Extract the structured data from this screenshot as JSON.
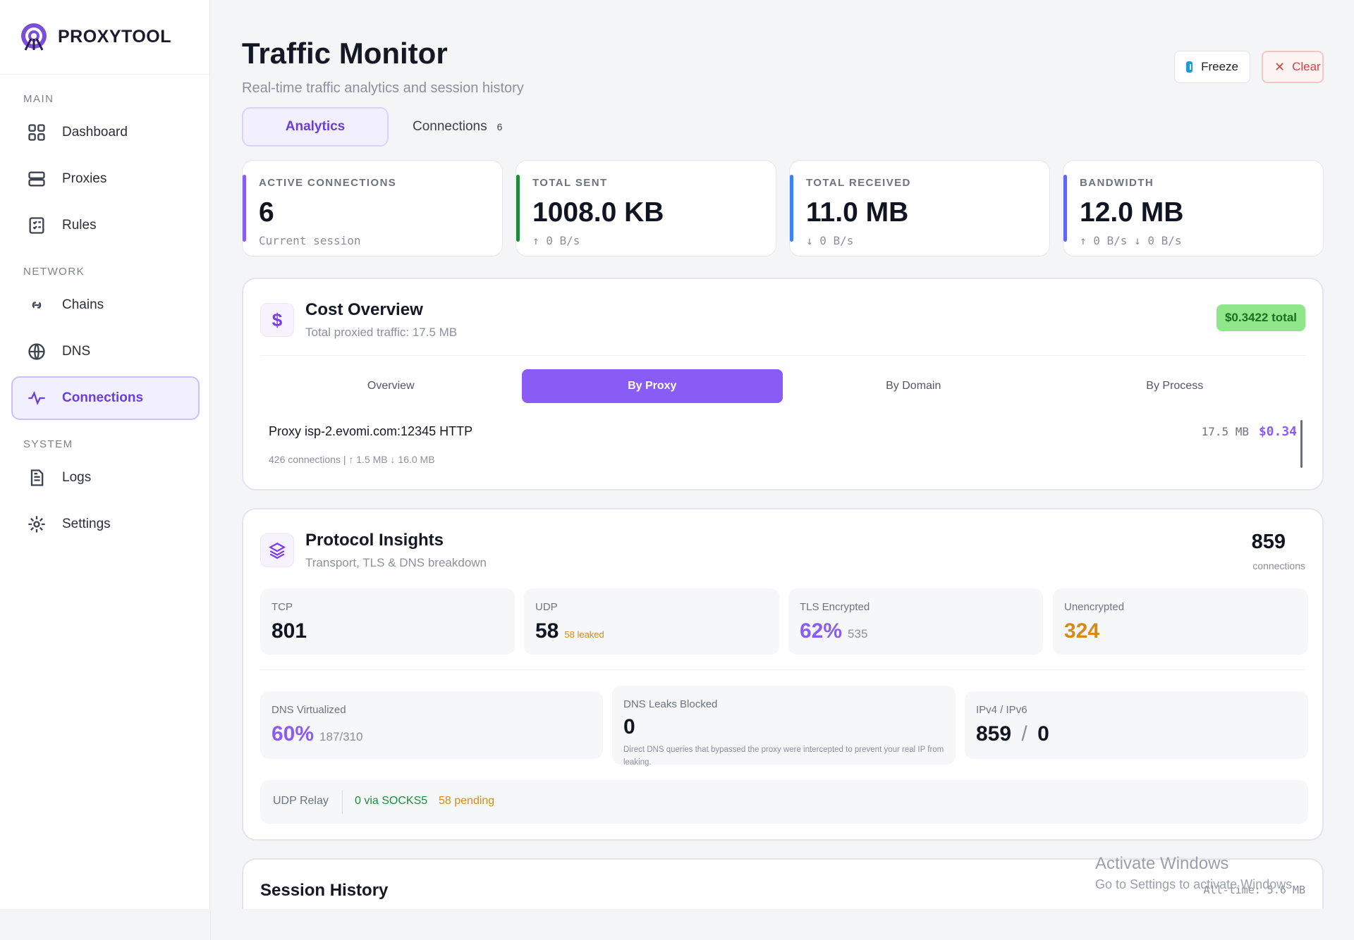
{
  "app": {
    "name": "PROXYTOOL"
  },
  "sidebar": {
    "sections": [
      {
        "title": "MAIN",
        "items": [
          {
            "label": "Dashboard",
            "icon": "grid-icon"
          },
          {
            "label": "Proxies",
            "icon": "server-icon"
          },
          {
            "label": "Rules",
            "icon": "checklist-icon"
          }
        ]
      },
      {
        "title": "NETWORK",
        "items": [
          {
            "label": "Chains",
            "icon": "link-icon"
          },
          {
            "label": "DNS",
            "icon": "globe-icon"
          },
          {
            "label": "Connections",
            "icon": "activity-icon",
            "active": true
          }
        ]
      },
      {
        "title": "SYSTEM",
        "items": [
          {
            "label": "Logs",
            "icon": "document-icon"
          },
          {
            "label": "Settings",
            "icon": "gear-icon"
          }
        ]
      }
    ]
  },
  "header": {
    "title": "Traffic Monitor",
    "subtitle": "Real-time traffic analytics and session history",
    "freeze_label": "Freeze",
    "clear_label": "Clear"
  },
  "tabs": {
    "analytics": "Analytics",
    "connections": "Connections",
    "connections_count": "6"
  },
  "stats": {
    "active": {
      "label": "ACTIVE CONNECTIONS",
      "value": "6",
      "sub": "Current session",
      "color": "#8a5cf6"
    },
    "sent": {
      "label": "TOTAL SENT",
      "value": "1008.0 KB",
      "sub": "↑ 0 B/s",
      "color": "#1f8a3a"
    },
    "received": {
      "label": "TOTAL RECEIVED",
      "value": "11.0 MB",
      "sub": "↓ 0 B/s",
      "color": "#3b82f6"
    },
    "bandwidth": {
      "label": "BANDWIDTH",
      "value": "12.0 MB",
      "sub": "↑ 0 B/s  ↓ 0 B/s",
      "color": "#6366f1"
    }
  },
  "cost": {
    "title": "Cost Overview",
    "subtitle": "Total proxied traffic: 17.5 MB",
    "total": "$0.3422 total",
    "segments": {
      "overview": "Overview",
      "by_proxy": "By Proxy",
      "by_domain": "By Domain",
      "by_process": "By Process"
    },
    "proxy": {
      "name": "Proxy isp-2.evomi.com:12345 HTTP",
      "meta": "426 connections  |  ↑ 1.5 MB  ↓ 16.0 MB",
      "size": "17.5 MB",
      "cost": "$0.34"
    }
  },
  "protocol": {
    "title": "Protocol Insights",
    "subtitle": "Transport, TLS & DNS breakdown",
    "total": "859",
    "total_label": "connections",
    "tcp": {
      "label": "TCP",
      "value": "801"
    },
    "udp": {
      "label": "UDP",
      "value": "58",
      "extra": "58 leaked"
    },
    "tls": {
      "label": "TLS Encrypted",
      "value": "62%",
      "extra": "535"
    },
    "unencrypted": {
      "label": "Unencrypted",
      "value": "324"
    },
    "dns_virtualized": {
      "label": "DNS Virtualized",
      "value": "60%",
      "extra": "187/310"
    },
    "dns_leaks": {
      "label": "DNS Leaks Blocked",
      "value": "0",
      "note": "Direct DNS queries that bypassed the proxy were intercepted to prevent your real IP from leaking."
    },
    "ip": {
      "label": "IPv4 / IPv6",
      "v4": "859",
      "sep": "/",
      "v6": "0"
    },
    "relay": {
      "label": "UDP Relay",
      "via": "0 via SOCKS5",
      "pending": "58 pending"
    }
  },
  "session": {
    "title": "Session History",
    "all_time": "All-time: 5.6 MB"
  },
  "watermark": {
    "line1": "Activate Windows",
    "line2": "Go to Settings to activate Windows."
  }
}
